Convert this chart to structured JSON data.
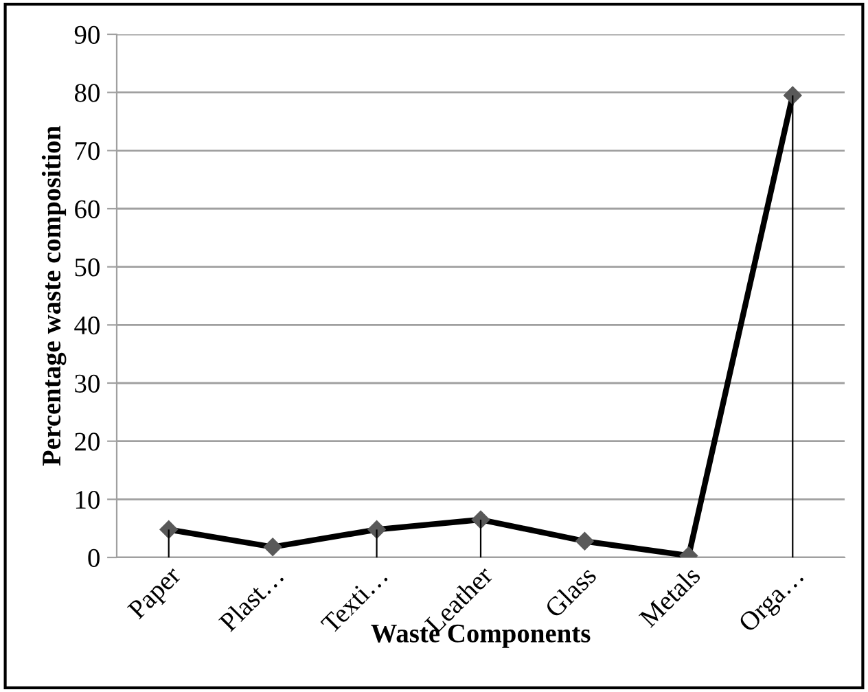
{
  "chart_data": {
    "type": "line",
    "xlabel": "Waste Components",
    "ylabel": "Percentage waste composition",
    "categories": [
      "Paper",
      "Plast…",
      "Texti…",
      "Leather",
      "Glass",
      "Metals",
      "Orga…"
    ],
    "series": [
      {
        "color": "#000000",
        "values": [
          4.8,
          1.8,
          4.8,
          6.5,
          2.8,
          0.3,
          79.5
        ],
        "errors": [
          [
            0,
            4.8
          ],
          null,
          [
            0,
            4.8
          ],
          [
            0,
            6.5
          ],
          null,
          null,
          [
            0,
            79.5
          ]
        ]
      }
    ],
    "ylim": [
      0,
      90
    ],
    "yticks": [
      0,
      10,
      20,
      30,
      40,
      50,
      60,
      70,
      80,
      90
    ],
    "grid": "y",
    "marker": "diamond",
    "line_style": "solid"
  }
}
